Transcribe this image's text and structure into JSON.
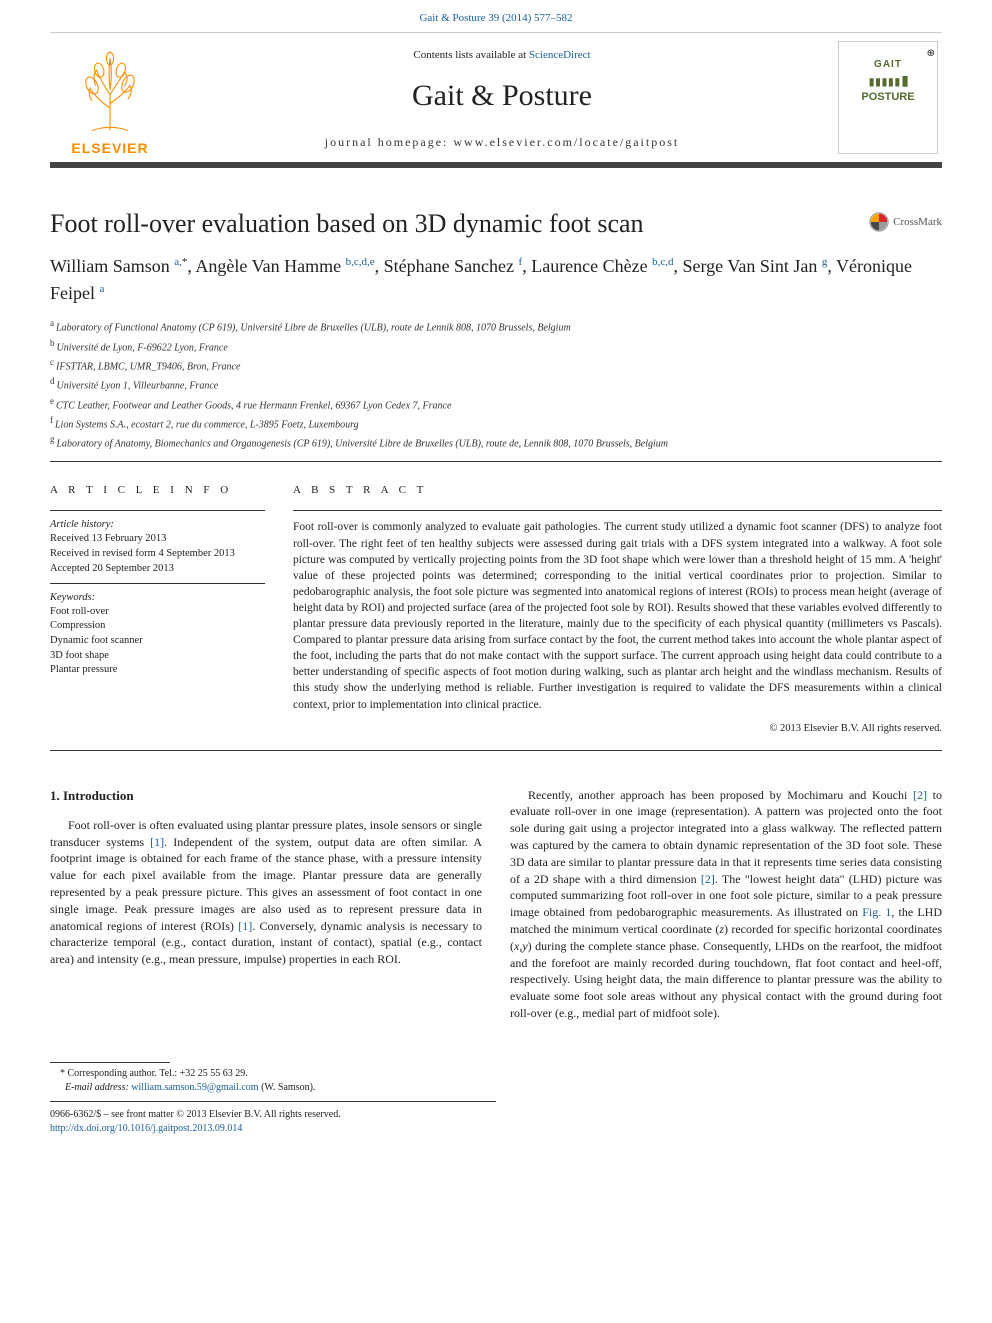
{
  "header": {
    "top_citation": "Gait & Posture 39 (2014) 577–582",
    "contents_prefix": "Contents lists available at ",
    "contents_link": "ScienceDirect",
    "journal": "Gait & Posture",
    "homepage": "journal homepage: www.elsevier.com/locate/gaitpost",
    "elsevier": "ELSEVIER",
    "cover_line1": "GAIT",
    "cover_line2": "POSTURE"
  },
  "crossmark": "CrossMark",
  "title": "Foot roll-over evaluation based on 3D dynamic foot scan",
  "authors_html": "William Samson <a href='#'><sup>a,</sup></a><sup>*</sup>, Angèle Van Hamme <a href='#'><sup>b,c,d,e</sup></a>, Stéphane Sanchez <a href='#'><sup>f</sup></a>, Laurence Chèze <a href='#'><sup>b,c,d</sup></a>, Serge Van Sint Jan <a href='#'><sup>g</sup></a>, Véronique Feipel <a href='#'><sup>a</sup></a>",
  "affiliations": [
    {
      "sup": "a",
      "text": "Laboratory of Functional Anatomy (CP 619), Université Libre de Bruxelles (ULB), route de Lennik 808, 1070 Brussels, Belgium"
    },
    {
      "sup": "b",
      "text": "Université de Lyon, F-69622 Lyon, France"
    },
    {
      "sup": "c",
      "text": "IFSTTAR, LBMC, UMR_T9406, Bron, France"
    },
    {
      "sup": "d",
      "text": "Université Lyon 1, Villeurbanne, France"
    },
    {
      "sup": "e",
      "text": "CTC Leather, Footwear and Leather Goods, 4 rue Hermann Frenkel, 69367 Lyon Cedex 7, France"
    },
    {
      "sup": "f",
      "text": "Lion Systems S.A., ecostart 2, rue du commerce, L-3895 Foetz, Luxembourg"
    },
    {
      "sup": "g",
      "text": "Laboratory of Anatomy, Biomechanics and Organogenesis (CP 619), Université Libre de Bruxelles (ULB), route de, Lennik 808, 1070 Brussels, Belgium"
    }
  ],
  "info_heading": "A R T I C L E   I N F O",
  "abstract_heading": "A B S T R A C T",
  "history": {
    "label": "Article history:",
    "received": "Received 13 February 2013",
    "revised": "Received in revised form 4 September 2013",
    "accepted": "Accepted 20 September 2013"
  },
  "keywords": {
    "label": "Keywords:",
    "items": [
      "Foot roll-over",
      "Compression",
      "Dynamic foot scanner",
      "3D foot shape",
      "Plantar pressure"
    ]
  },
  "abstract": "Foot roll-over is commonly analyzed to evaluate gait pathologies. The current study utilized a dynamic foot scanner (DFS) to analyze foot roll-over. The right feet of ten healthy subjects were assessed during gait trials with a DFS system integrated into a walkway. A foot sole picture was computed by vertically projecting points from the 3D foot shape which were lower than a threshold height of 15 mm. A 'height' value of these projected points was determined; corresponding to the initial vertical coordinates prior to projection. Similar to pedobarographic analysis, the foot sole picture was segmented into anatomical regions of interest (ROIs) to process mean height (average of height data by ROI) and projected surface (area of the projected foot sole by ROI). Results showed that these variables evolved differently to plantar pressure data previously reported in the literature, mainly due to the specificity of each physical quantity (millimeters vs Pascals). Compared to plantar pressure data arising from surface contact by the foot, the current method takes into account the whole plantar aspect of the foot, including the parts that do not make contact with the support surface. The current approach using height data could contribute to a better understanding of specific aspects of foot motion during walking, such as plantar arch height and the windlass mechanism. Results of this study show the underlying method is reliable. Further investigation is required to validate the DFS measurements within a clinical context, prior to implementation into clinical practice.",
  "copyright": "© 2013 Elsevier B.V. All rights reserved.",
  "section_heading": "1. Introduction",
  "col1_p1": "Foot roll-over is often evaluated using plantar pressure plates, insole sensors or single transducer systems [1]. Independent of the system, output data are often similar. A footprint image is obtained for each frame of the stance phase, with a pressure intensity value for each pixel available from the image. Plantar pressure data are generally represented by a peak pressure picture. This gives an assessment of foot contact in one single image. Peak pressure images are also used as to represent pressure data in anatomical regions of interest (ROIs) [1]. Conversely, dynamic analysis is necessary to characterize temporal (e.g., contact duration, instant of contact), spatial (e.g., contact area) and intensity (e.g., mean pressure, impulse) properties in each ROI.",
  "col2_p1": "Recently, another approach has been proposed by Mochimaru and Kouchi [2] to evaluate roll-over in one image (representation). A pattern was projected onto the foot sole during gait using a projector integrated into a glass walkway. The reflected pattern was captured by the camera to obtain dynamic representation of the 3D foot sole. These 3D data are similar to plantar pressure data in that it represents time series data consisting of a 2D shape with a third dimension [2]. The \"lowest height data\" (LHD) picture was computed summarizing foot roll-over in one foot sole picture, similar to a peak pressure image obtained from pedobarographic measurements. As illustrated on Fig. 1, the LHD matched the minimum vertical coordinate (z) recorded for specific horizontal coordinates (x,y) during the complete stance phase. Consequently, LHDs on the rearfoot, the midfoot and the forefoot are mainly recorded during touchdown, flat foot contact and heel-off, respectively. Using height data, the main difference to plantar pressure was the ability to evaluate some foot sole areas without any physical contact with the ground during foot roll-over (e.g., medial part of midfoot sole).",
  "footer": {
    "corresponding": "* Corresponding author. Tel.: +32 25 55 63 29.",
    "email_label": "E-mail address: ",
    "email": "william.samson.59@gmail.com",
    "email_suffix": " (W. Samson).",
    "issn": "0966-6362/$ – see front matter © 2013 Elsevier B.V. All rights reserved.",
    "doi": "http://dx.doi.org/10.1016/j.gaitpost.2013.09.014"
  },
  "colors": {
    "link": "#1a5d9e",
    "elsevier": "#ff8c00",
    "cover": "#556b2f",
    "text": "#222222",
    "rule": "#333333"
  }
}
